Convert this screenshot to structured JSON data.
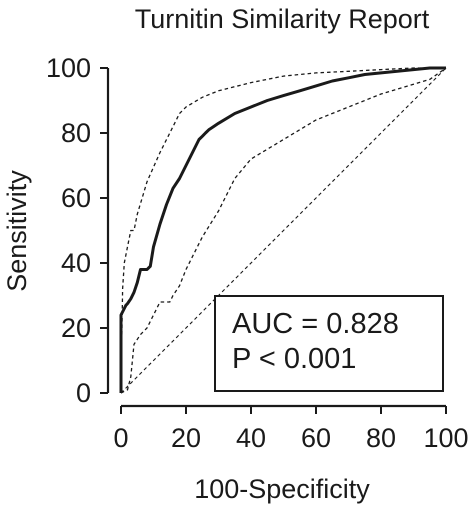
{
  "chart_data": {
    "type": "line",
    "title": "Turnitin Similarity Report",
    "xlabel": "100-Specificity",
    "ylabel": "Sensitivity",
    "xlim": [
      0,
      100
    ],
    "ylim": [
      0,
      100
    ],
    "xticks": [
      0,
      20,
      40,
      60,
      80,
      100
    ],
    "yticks": [
      0,
      20,
      40,
      60,
      80,
      100
    ],
    "annotations": [
      "AUC = 0.828",
      "P < 0.001"
    ],
    "series": [
      {
        "role": "roc",
        "x": [
          0,
          0,
          1,
          1.5,
          2,
          3,
          4,
          5,
          6,
          8,
          8.5,
          9,
          10,
          12,
          14,
          16,
          18,
          20,
          22,
          24,
          25,
          26,
          27,
          30,
          35,
          40,
          45,
          50,
          55,
          60,
          65,
          70,
          75,
          80,
          85,
          90,
          95,
          100
        ],
        "y": [
          0,
          24,
          26,
          27,
          27.5,
          29,
          31,
          34,
          38,
          38,
          38.5,
          39,
          45,
          52,
          58,
          63,
          66,
          70,
          74,
          78,
          79,
          80,
          81,
          83,
          86,
          88,
          90,
          91.5,
          93,
          94.5,
          96,
          97,
          98,
          98.5,
          99,
          99.5,
          100,
          100
        ]
      },
      {
        "role": "ci-upper",
        "x": [
          0,
          0.5,
          1,
          2,
          3,
          4,
          5,
          8,
          12,
          15,
          18,
          20,
          25,
          30,
          40,
          50,
          60,
          70,
          80,
          90,
          100
        ],
        "y": [
          0,
          32,
          40,
          45,
          50,
          50,
          55,
          65,
          74,
          80,
          86,
          88,
          91,
          93,
          95.5,
          97.5,
          98.5,
          99,
          99.5,
          100,
          100
        ]
      },
      {
        "role": "ci-lower",
        "x": [
          0,
          2,
          3,
          4,
          6,
          8,
          12,
          14,
          15,
          16,
          18,
          20,
          25,
          30,
          35,
          40,
          50,
          60,
          70,
          80,
          90,
          95,
          100
        ],
        "y": [
          0,
          1,
          5,
          15,
          18,
          20,
          28,
          28,
          28,
          30,
          33,
          38,
          48,
          56,
          66,
          72,
          78,
          84,
          88,
          92,
          95,
          96.5,
          100
        ]
      },
      {
        "role": "reference",
        "x": [
          0,
          100
        ],
        "y": [
          0,
          100
        ]
      }
    ]
  }
}
